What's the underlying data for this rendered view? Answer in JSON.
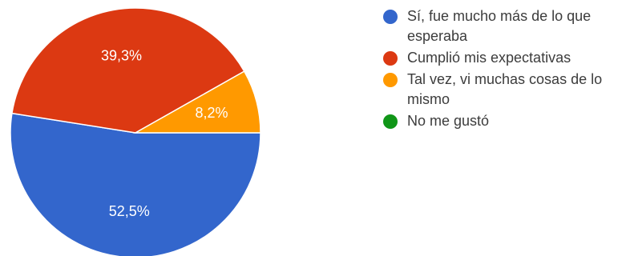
{
  "chart_data": {
    "type": "pie",
    "title": "",
    "categories": [
      "Sí, fue mucho más de lo que esperaba",
      "Cumplió mis expectativas",
      "Tal vez, vi muchas cosas de lo mismo",
      "No me gustó"
    ],
    "values": [
      52.5,
      39.3,
      8.2,
      0
    ],
    "value_labels": [
      "52,5%",
      "39,3%",
      "8,2%",
      ""
    ],
    "colors": [
      "#3366cc",
      "#dc3912",
      "#ff9900",
      "#109618"
    ],
    "legend_position": "right"
  }
}
